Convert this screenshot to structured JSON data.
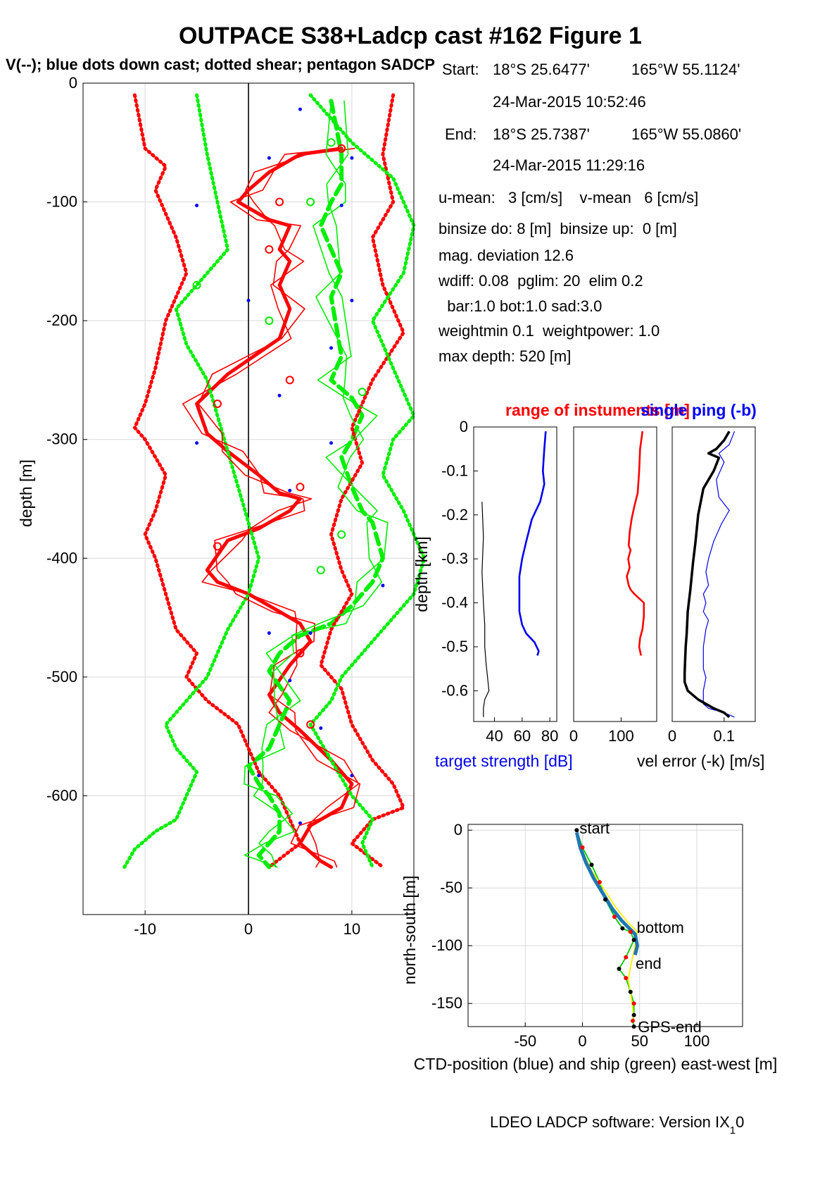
{
  "title": "OUTPACE S38+Ladcp cast #162  Figure 1",
  "subtitle": "V(--); blue dots down cast; dotted shear; pentagon SADCP",
  "info": {
    "start_label": "Start:",
    "start_lat": "18°S 25.6477'",
    "start_lon": "165°W 55.1124'",
    "start_time": "24-Mar-2015 10:52:46",
    "end_label": "End:",
    "end_lat": "18°S 25.7387'",
    "end_lon": "165°W 55.0860'",
    "end_time": "24-Mar-2015 11:29:16",
    "means": "u-mean:   3 [cm/s]    v-mean   6 [cm/s]",
    "binsize": "binsize do: 8 [m]  binsize up:  0 [m]",
    "magdev": "mag. deviation 12.6",
    "wdiff": "wdiff: 0.08  pglim: 20  elim 0.2",
    "bar": "  bar:1.0 bot:1.0 sad:3.0",
    "weight": "weightmin 0.1  weightpower: 1.0",
    "maxdepth": "max depth: 520 [m]"
  },
  "footer": "LDEO LADCP software: Version IX",
  "footer_sub": "1",
  "footer_end": "0",
  "colors": {
    "u": "#ff0000",
    "v": "#00ee00",
    "dots": "#0000ff",
    "ts": "#0000ee",
    "range": "#ff0000",
    "err": "#000000",
    "ship": "#00cc00",
    "ctd": "#1f77b4",
    "yellow": "#ffee00"
  },
  "chart_data": [
    {
      "type": "line",
      "name": "main-velocity-profile",
      "ylabel": "depth [m]",
      "xlabel": "",
      "xlim": [
        -16,
        16
      ],
      "ylim": [
        -700,
        0
      ],
      "xticks": [
        -10,
        0,
        10
      ],
      "yticks": [
        0,
        -100,
        -200,
        -300,
        -400,
        -500,
        -600
      ],
      "grid": true,
      "series": [
        {
          "color": "u",
          "style": "bold",
          "x": [
            9,
            5,
            2,
            0,
            -1,
            2,
            4,
            3,
            4,
            3,
            4,
            3,
            -2,
            -5,
            -4,
            -2,
            1,
            3,
            5,
            4,
            1,
            -2,
            -4,
            -3,
            0,
            3,
            5,
            6,
            4,
            2,
            3,
            5,
            8,
            10,
            9,
            6,
            5,
            7,
            8
          ],
          "y": [
            -55,
            -60,
            -75,
            -90,
            -100,
            -115,
            -120,
            -140,
            -150,
            -170,
            -190,
            -215,
            -245,
            -270,
            -295,
            -310,
            -330,
            -345,
            -350,
            -360,
            -375,
            -385,
            -410,
            -420,
            -430,
            -445,
            -455,
            -470,
            -490,
            -515,
            -530,
            -545,
            -570,
            -590,
            -610,
            -625,
            -640,
            -655,
            -660
          ]
        },
        {
          "color": "v",
          "style": "bold-dash",
          "x": [
            8,
            9,
            9,
            8,
            7,
            9,
            8,
            9,
            8,
            10,
            11,
            10,
            9,
            10,
            11,
            12,
            13,
            12,
            10,
            8,
            5,
            3,
            2,
            4,
            3,
            2,
            0,
            1,
            2,
            3,
            3,
            2,
            1,
            2
          ],
          "y": [
            -15,
            -60,
            -85,
            -100,
            -120,
            -160,
            -180,
            -230,
            -250,
            -265,
            -280,
            -300,
            -315,
            -340,
            -360,
            -370,
            -400,
            -420,
            -440,
            -455,
            -465,
            -480,
            -495,
            -520,
            -540,
            -560,
            -575,
            -590,
            -600,
            -615,
            -630,
            -640,
            -650,
            -660
          ]
        },
        {
          "color": "u",
          "style": "dotted",
          "x": [
            -11,
            -10,
            -8,
            -9,
            -7,
            -6,
            -8,
            -9,
            -10,
            -11,
            -10,
            -8,
            -9,
            -10,
            -9,
            -8,
            -7,
            -5,
            -6,
            -4,
            -1,
            0,
            1,
            3,
            4,
            5,
            2
          ],
          "y": [
            -10,
            -55,
            -70,
            -90,
            -130,
            -160,
            -200,
            -240,
            -270,
            -290,
            -300,
            -330,
            -360,
            -380,
            -400,
            -430,
            -460,
            -480,
            -500,
            -520,
            -540,
            -560,
            -580,
            -600,
            -620,
            -640,
            -660
          ]
        },
        {
          "color": "u",
          "style": "dotted",
          "x": [
            14,
            13,
            14,
            12,
            13,
            15,
            12,
            10,
            11,
            9,
            8,
            9,
            10,
            8,
            7,
            9,
            10,
            12,
            14,
            15,
            12,
            10,
            13
          ],
          "y": [
            -10,
            -60,
            -100,
            -130,
            -170,
            -210,
            -250,
            -290,
            -320,
            -350,
            -380,
            -410,
            -430,
            -460,
            -490,
            -510,
            -540,
            -570,
            -590,
            -610,
            -620,
            -640,
            -660
          ]
        },
        {
          "color": "v",
          "style": "dotted",
          "x": [
            -5,
            -4,
            -3,
            -2,
            -5,
            -7,
            -6,
            -4,
            -3,
            -2,
            -1,
            0,
            1,
            0,
            -2,
            -3,
            -4,
            -6,
            -8,
            -7,
            -5,
            -6,
            -7,
            -9,
            -11,
            -12
          ],
          "y": [
            -10,
            -60,
            -100,
            -140,
            -170,
            -190,
            -220,
            -250,
            -280,
            -310,
            -340,
            -370,
            -400,
            -430,
            -460,
            -480,
            -500,
            -520,
            -540,
            -560,
            -580,
            -600,
            -620,
            -630,
            -645,
            -660
          ]
        },
        {
          "color": "v",
          "style": "dotted",
          "x": [
            6,
            10,
            14,
            16,
            15,
            12,
            14,
            16,
            14,
            13,
            15,
            17,
            16,
            13,
            11,
            9,
            8,
            6,
            8,
            10,
            12,
            11,
            12
          ],
          "y": [
            -10,
            -50,
            -80,
            -120,
            -160,
            -200,
            -240,
            -280,
            -300,
            -330,
            -360,
            -400,
            -430,
            -460,
            -480,
            -500,
            -520,
            -540,
            -570,
            -600,
            -620,
            -640,
            -660
          ]
        }
      ],
      "sadcp_u": {
        "x": [
          9,
          3,
          2,
          4,
          -3,
          5,
          -3,
          5,
          6
        ],
        "y": [
          -55,
          -100,
          -140,
          -250,
          -270,
          -340,
          -390,
          -480,
          -540
        ]
      },
      "sadcp_v": {
        "x": [
          8,
          6,
          -5,
          2,
          11,
          9,
          7
        ],
        "y": [
          -50,
          -100,
          -170,
          -200,
          -260,
          -380,
          -410
        ]
      },
      "downcast_dots": {
        "x": [
          5,
          2,
          10,
          9,
          -5,
          0,
          10,
          8,
          3,
          -5,
          8,
          4,
          13,
          2,
          6,
          4,
          7,
          1,
          10,
          5
        ],
        "y": [
          -22,
          -63,
          -63,
          -103,
          -103,
          -183,
          -183,
          -223,
          -263,
          -303,
          -303,
          -343,
          -423,
          -463,
          -463,
          -503,
          -543,
          -583,
          -583,
          -623
        ]
      }
    },
    {
      "type": "line",
      "name": "target-strength",
      "title": "range of instuments [m]",
      "ylabel": "depth [km]",
      "xlabel": "target strength [dB]",
      "xlim": [
        25,
        85
      ],
      "ylim": [
        -0.67,
        0
      ],
      "xticks": [
        40,
        60,
        80
      ],
      "yticks": [
        0,
        -0.1,
        -0.2,
        -0.3,
        -0.4,
        -0.5,
        -0.6
      ],
      "series": [
        {
          "color": "ts",
          "x": [
            77,
            76,
            75,
            76,
            73,
            67,
            63,
            60,
            58,
            58,
            58,
            60,
            63,
            69,
            72,
            71
          ],
          "y": [
            -0.01,
            -0.05,
            -0.1,
            -0.13,
            -0.17,
            -0.21,
            -0.26,
            -0.3,
            -0.34,
            -0.38,
            -0.42,
            -0.45,
            -0.47,
            -0.49,
            -0.51,
            -0.52
          ]
        },
        {
          "color": "err",
          "x": [
            31,
            32,
            31,
            32,
            33,
            33,
            34,
            35,
            36,
            33,
            32,
            32
          ],
          "y": [
            -0.17,
            -0.25,
            -0.33,
            -0.4,
            -0.45,
            -0.5,
            -0.54,
            -0.57,
            -0.6,
            -0.62,
            -0.64,
            -0.66
          ]
        }
      ]
    },
    {
      "type": "line",
      "name": "instrument-range",
      "xlim": [
        0,
        175
      ],
      "ylim": [
        -0.67,
        0
      ],
      "xticks": [
        0,
        100
      ],
      "series": [
        {
          "color": "range",
          "x": [
            145,
            140,
            138,
            135,
            128,
            122,
            118,
            116,
            120,
            115,
            118,
            112,
            116,
            120,
            128,
            138,
            148,
            148,
            145,
            140,
            138,
            142
          ],
          "y": [
            -0.01,
            -0.05,
            -0.1,
            -0.15,
            -0.18,
            -0.21,
            -0.24,
            -0.27,
            -0.28,
            -0.3,
            -0.32,
            -0.34,
            -0.36,
            -0.37,
            -0.38,
            -0.39,
            -0.4,
            -0.43,
            -0.46,
            -0.48,
            -0.5,
            -0.52
          ]
        }
      ]
    },
    {
      "type": "line",
      "name": "velocity-error",
      "title": "single ping (-b)",
      "xlabel": "vel error (-k) [m/s]",
      "xlim": [
        0,
        0.16
      ],
      "ylim": [
        -0.67,
        0
      ],
      "xticks": [
        0,
        0.1
      ],
      "series": [
        {
          "color": "ts",
          "x": [
            0.12,
            0.11,
            0.09,
            0.1,
            0.085,
            0.09,
            0.11,
            0.095,
            0.08,
            0.075,
            0.07,
            0.065,
            0.07,
            0.06,
            0.065,
            0.06,
            0.07,
            0.065,
            0.06,
            0.06,
            0.065,
            0.06,
            0.06,
            0.06,
            0.07,
            0.1,
            0.12
          ],
          "y": [
            -0.01,
            -0.04,
            -0.06,
            -0.08,
            -0.12,
            -0.16,
            -0.19,
            -0.22,
            -0.26,
            -0.28,
            -0.3,
            -0.33,
            -0.36,
            -0.38,
            -0.4,
            -0.42,
            -0.44,
            -0.46,
            -0.5,
            -0.55,
            -0.57,
            -0.6,
            -0.62,
            -0.63,
            -0.64,
            -0.65,
            -0.66
          ]
        },
        {
          "color": "err",
          "x": [
            0.11,
            0.1,
            0.085,
            0.07,
            0.09,
            0.08,
            0.06,
            0.05,
            0.045,
            0.04,
            0.035,
            0.03,
            0.028,
            0.026,
            0.025,
            0.024,
            0.024,
            0.03,
            0.05,
            0.08,
            0.1,
            0.11
          ],
          "y": [
            -0.01,
            -0.03,
            -0.05,
            -0.06,
            -0.07,
            -0.1,
            -0.14,
            -0.2,
            -0.26,
            -0.31,
            -0.37,
            -0.42,
            -0.47,
            -0.5,
            -0.53,
            -0.56,
            -0.58,
            -0.6,
            -0.62,
            -0.64,
            -0.65,
            -0.66
          ]
        }
      ]
    },
    {
      "type": "line",
      "name": "ctd-position",
      "xlabel": "CTD-position (blue) and ship (green) east-west [m]",
      "ylabel": "north-south [m]",
      "xlim": [
        -100,
        140
      ],
      "ylim": [
        -170,
        5
      ],
      "xticks": [
        -50,
        0,
        50,
        100
      ],
      "yticks": [
        0,
        -50,
        -100,
        -150
      ],
      "grid": true,
      "series": [
        {
          "color": "ship",
          "x": [
            -5,
            0,
            8,
            15,
            20,
            28,
            35,
            42,
            45,
            38,
            32,
            38,
            42,
            45,
            45,
            44,
            45
          ],
          "y": [
            0,
            -15,
            -30,
            -45,
            -60,
            -75,
            -85,
            -88,
            -95,
            -110,
            -120,
            -128,
            -140,
            -150,
            -160,
            -165,
            -170
          ]
        },
        {
          "color": "yellow",
          "x": [
            -5,
            0,
            8,
            18,
            30,
            40,
            48,
            45,
            42,
            40,
            42,
            44,
            45
          ],
          "y": [
            0,
            -18,
            -35,
            -50,
            -68,
            -80,
            -88,
            -105,
            -118,
            -130,
            -140,
            -155,
            -165
          ]
        },
        {
          "color": "ctd",
          "x": [
            -5,
            -2,
            3,
            10,
            18,
            26,
            34,
            40,
            46,
            48,
            46
          ],
          "y": [
            -2,
            -15,
            -28,
            -42,
            -55,
            -68,
            -78,
            -84,
            -90,
            -100,
            -108
          ]
        }
      ],
      "labels": [
        "start",
        "bottom",
        "end",
        "GPS-end"
      ]
    }
  ]
}
